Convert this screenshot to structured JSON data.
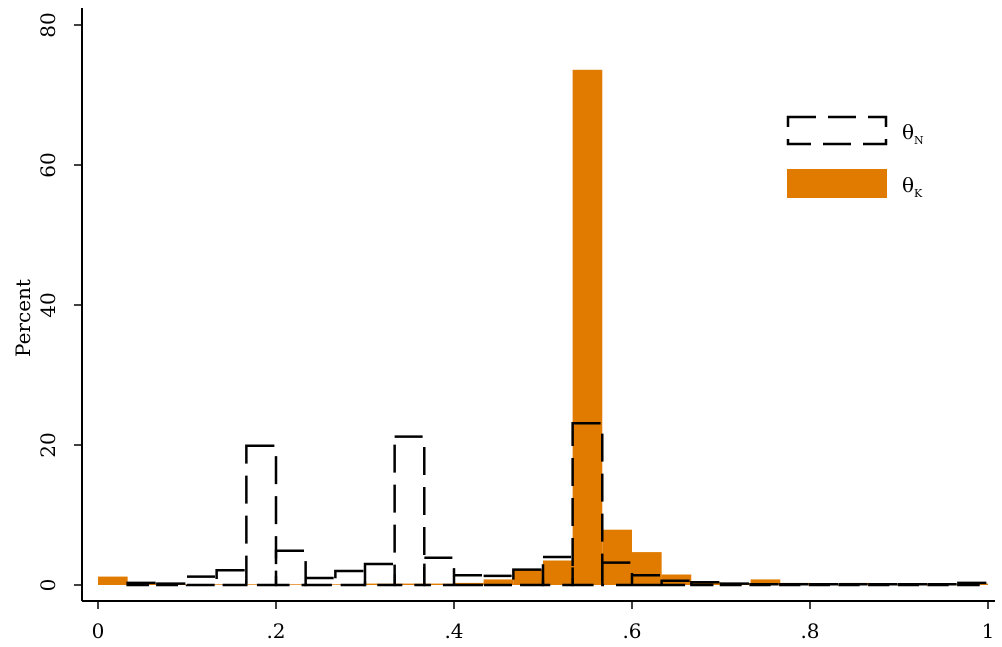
{
  "chart_data": {
    "type": "bar",
    "title": "",
    "xlabel": "",
    "ylabel": "Percent",
    "xlim": [
      0,
      1
    ],
    "ylim": [
      0,
      80
    ],
    "x_ticks": [
      0,
      0.2,
      0.4,
      0.6,
      0.8,
      1
    ],
    "x_tick_labels": [
      "0",
      ".2",
      ".4",
      ".6",
      ".8",
      "1"
    ],
    "y_ticks": [
      0,
      20,
      40,
      60,
      80
    ],
    "y_tick_labels": [
      "0",
      "20",
      "40",
      "60",
      "80"
    ],
    "grid": false,
    "legend_position": "top-right",
    "bin_width": 0.0333,
    "bin_starts": [
      0.0,
      0.0333,
      0.0667,
      0.1,
      0.1333,
      0.1667,
      0.2,
      0.2333,
      0.2667,
      0.3,
      0.3333,
      0.3667,
      0.4,
      0.4333,
      0.4667,
      0.5,
      0.5333,
      0.5667,
      0.6,
      0.6333,
      0.6667,
      0.7,
      0.7333,
      0.7667,
      0.8,
      0.8333,
      0.8667,
      0.9,
      0.9333,
      0.9667
    ],
    "series": [
      {
        "name": "θN",
        "legend_main": "θ",
        "legend_sub": "N",
        "style": "dashed-outline",
        "color": "#000000",
        "values": [
          0.0,
          0.3,
          0.2,
          1.2,
          2.1,
          19.9,
          4.9,
          1.0,
          2.0,
          3.0,
          21.2,
          3.9,
          1.4,
          1.3,
          2.2,
          4.0,
          23.1,
          3.2,
          1.4,
          0.6,
          0.4,
          0.2,
          0.1,
          0.1,
          0.1,
          0.1,
          0.1,
          0.1,
          0.1,
          0.3
        ]
      },
      {
        "name": "θK",
        "legend_main": "θ",
        "legend_sub": "K",
        "style": "filled",
        "color": "#E07B00",
        "values": [
          1.2,
          0.2,
          0.1,
          0.1,
          0.1,
          0.1,
          0.1,
          0.1,
          0.1,
          0.2,
          0.2,
          0.2,
          0.3,
          0.8,
          2.2,
          3.5,
          73.6,
          7.9,
          4.7,
          1.5,
          0.4,
          0.3,
          0.8,
          0.3,
          0.1,
          0.3,
          0.1,
          0.2,
          0.1,
          0.2
        ]
      }
    ]
  }
}
